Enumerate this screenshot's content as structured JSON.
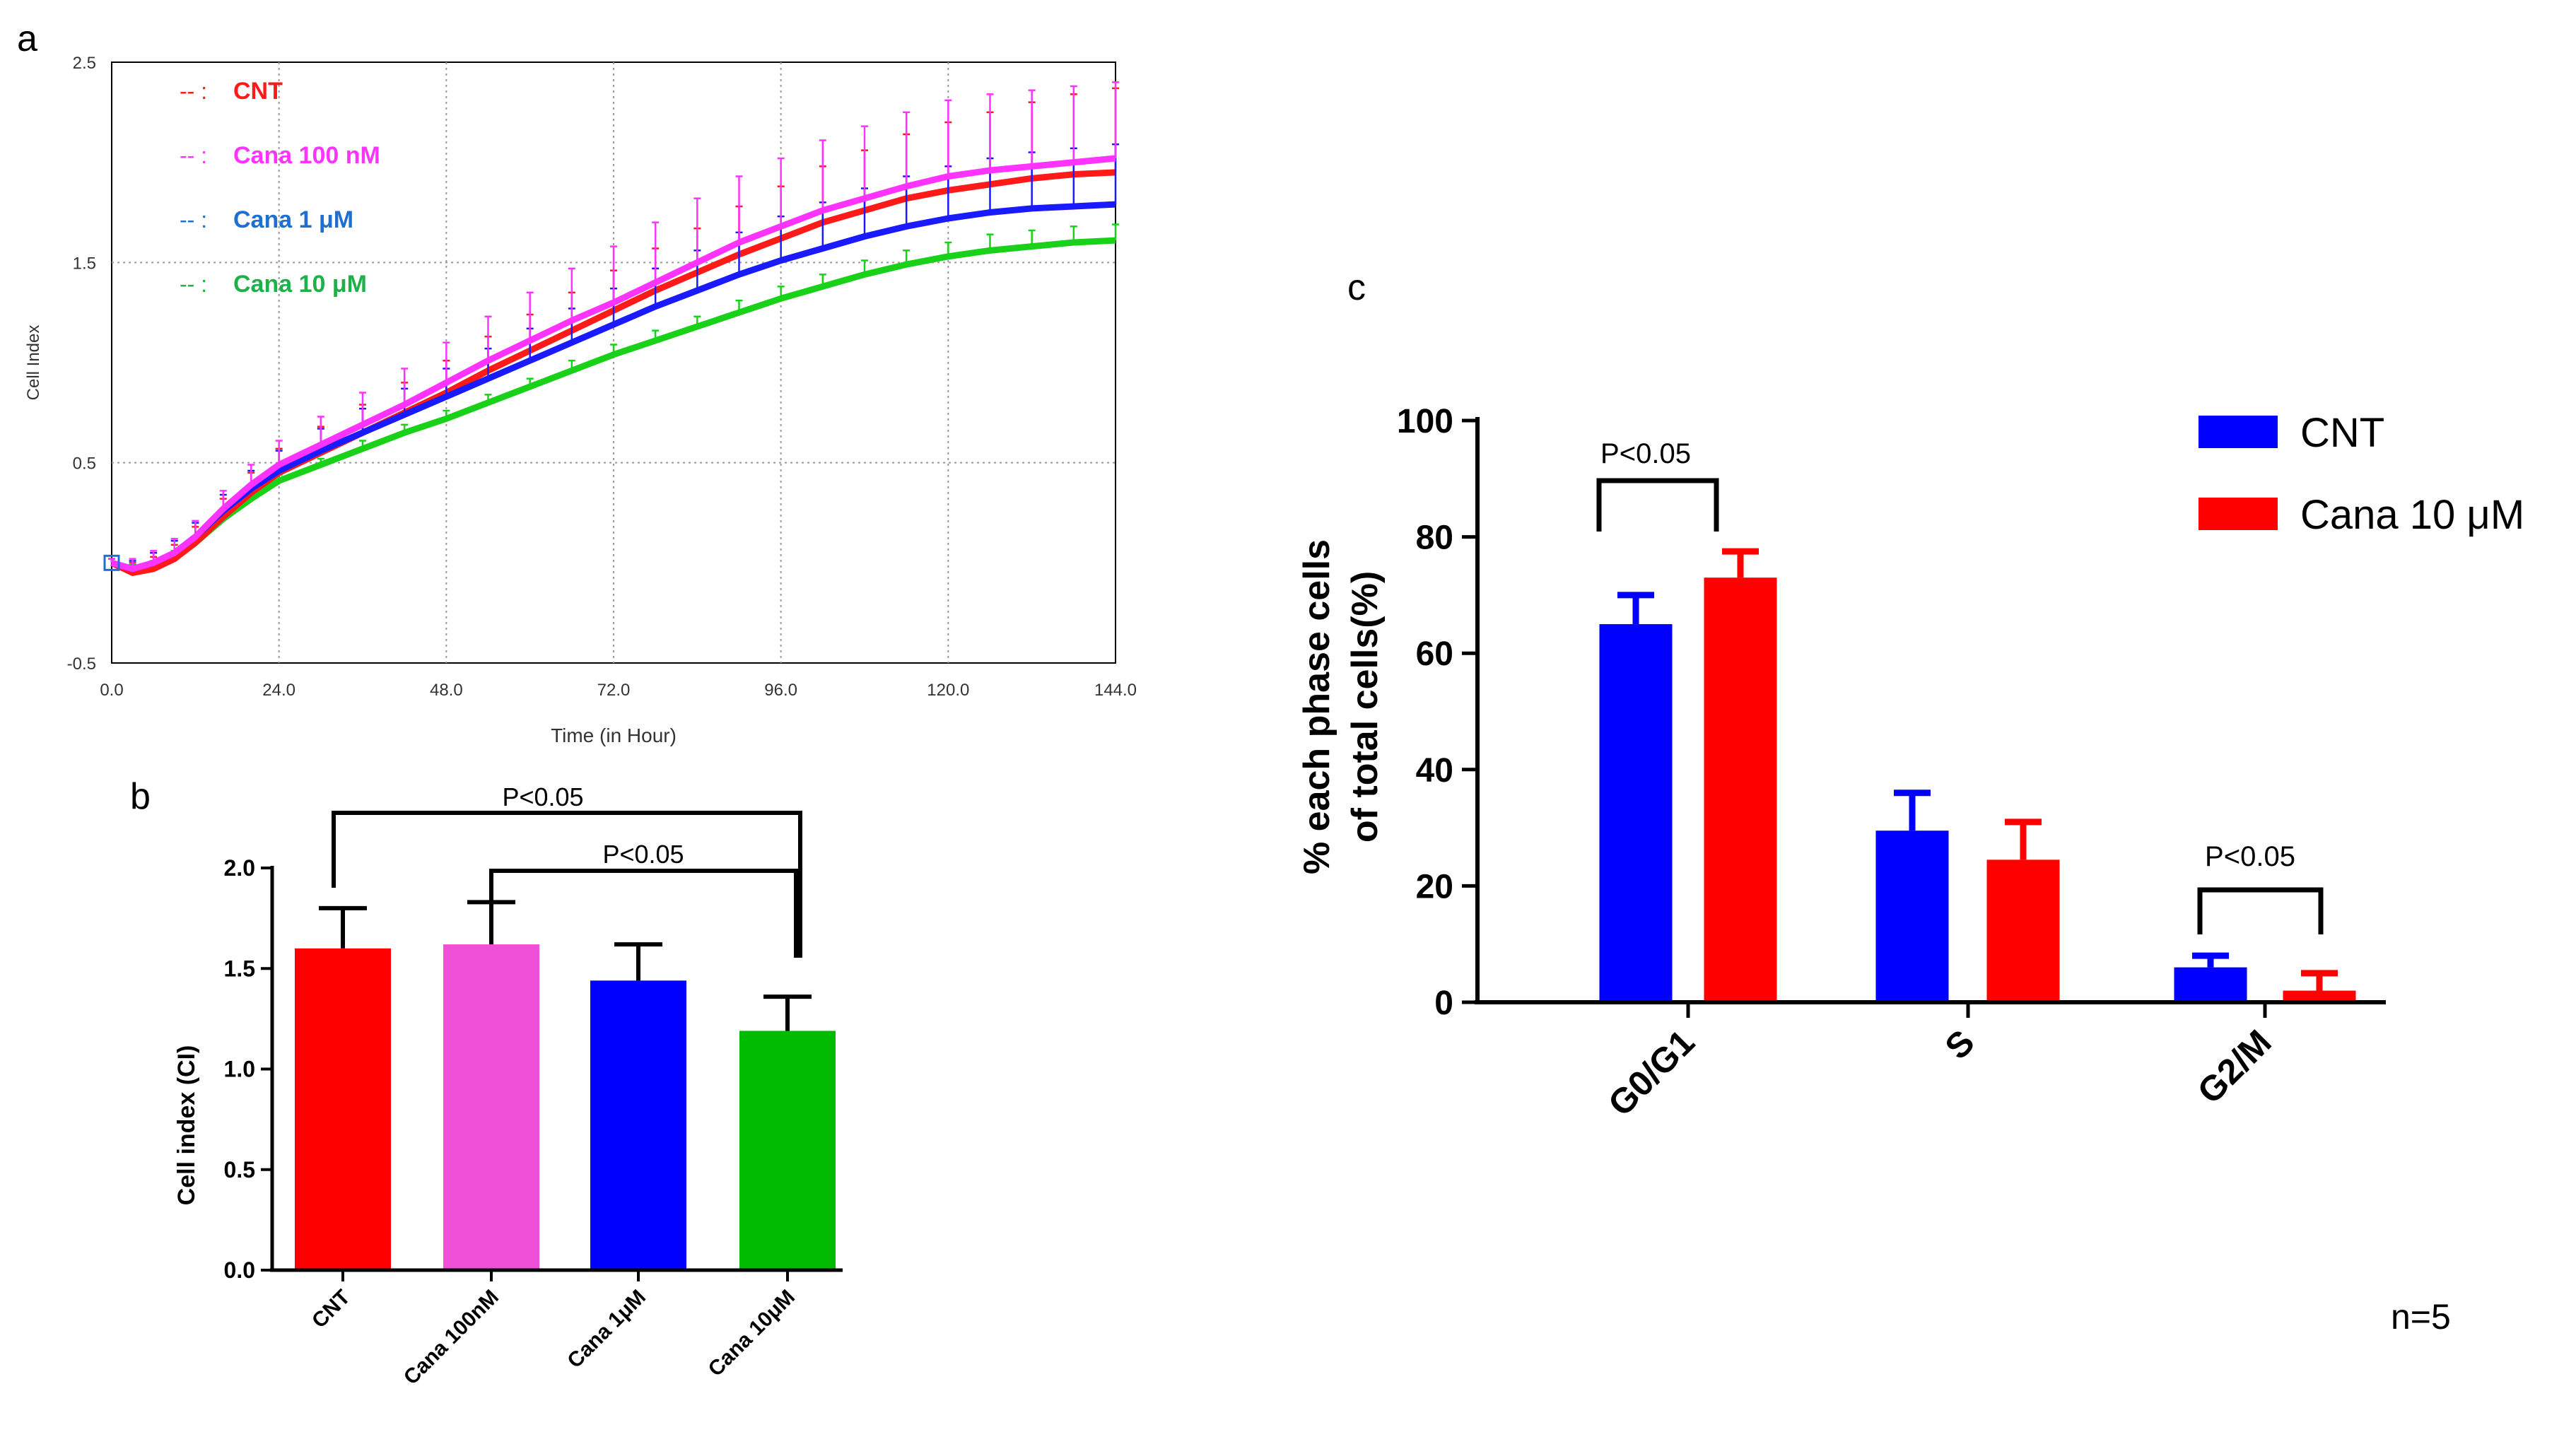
{
  "panels": {
    "a_label": "a",
    "b_label": "b",
    "c_label": "c",
    "footnote": "n=5"
  },
  "colors": {
    "CNT": "#ff1a1a",
    "Cana100": "#ff33ff",
    "Cana1": "#1a1aff",
    "Cana10": "#19d119",
    "Cana1_legend": "#1f6fd1",
    "Cana10_legend": "#1fb04a",
    "bar_CNT": "#ff0000",
    "bar_Cana100": "#f04fd8",
    "bar_Cana1": "#0000ff",
    "bar_Cana10": "#00bb00",
    "c_blue": "#0000ff",
    "c_red": "#ff0000"
  },
  "chart_data": [
    {
      "id": "a",
      "type": "line",
      "title": "",
      "xlabel": "Time (in Hour)",
      "ylabel": "Cell Index",
      "xlim": [
        0,
        144
      ],
      "ylim": [
        -0.5,
        2.5
      ],
      "xticks": [
        "0.0",
        "24.0",
        "48.0",
        "72.0",
        "96.0",
        "120.0",
        "144.0"
      ],
      "yticks": [
        "-0.5",
        "0.5",
        "1.5",
        "2.5"
      ],
      "grid": true,
      "legend": [
        {
          "prefix": "-- :",
          "label": "CNT"
        },
        {
          "prefix": "-- :",
          "label": "Cana 100 nM"
        },
        {
          "prefix": "-- :",
          "label": "Cana 1 μM"
        },
        {
          "prefix": "-- :",
          "label": "Cana 10 μM"
        }
      ],
      "x": [
        0,
        3,
        6,
        9,
        12,
        16,
        20,
        24,
        30,
        36,
        42,
        48,
        54,
        60,
        66,
        72,
        78,
        84,
        90,
        96,
        102,
        108,
        114,
        120,
        126,
        132,
        138,
        144
      ],
      "series": [
        {
          "name": "CNT",
          "values": [
            0.0,
            -0.05,
            -0.03,
            0.02,
            0.1,
            0.23,
            0.35,
            0.45,
            0.55,
            0.65,
            0.75,
            0.85,
            0.96,
            1.06,
            1.16,
            1.26,
            1.36,
            1.45,
            1.54,
            1.62,
            1.7,
            1.76,
            1.82,
            1.86,
            1.89,
            1.92,
            1.94,
            1.95
          ],
          "err": [
            0.02,
            0.05,
            0.06,
            0.07,
            0.08,
            0.09,
            0.1,
            0.12,
            0.13,
            0.14,
            0.15,
            0.16,
            0.17,
            0.18,
            0.19,
            0.2,
            0.21,
            0.22,
            0.24,
            0.26,
            0.28,
            0.3,
            0.32,
            0.34,
            0.36,
            0.38,
            0.4,
            0.42
          ]
        },
        {
          "name": "Cana 100 nM",
          "values": [
            0.0,
            -0.03,
            0.0,
            0.05,
            0.13,
            0.27,
            0.39,
            0.49,
            0.59,
            0.69,
            0.79,
            0.9,
            1.01,
            1.11,
            1.21,
            1.3,
            1.4,
            1.5,
            1.6,
            1.68,
            1.76,
            1.82,
            1.88,
            1.93,
            1.96,
            1.98,
            2.0,
            2.02
          ],
          "err": [
            0.02,
            0.05,
            0.06,
            0.07,
            0.08,
            0.09,
            0.1,
            0.12,
            0.14,
            0.16,
            0.18,
            0.2,
            0.22,
            0.24,
            0.26,
            0.28,
            0.3,
            0.32,
            0.33,
            0.34,
            0.35,
            0.36,
            0.37,
            0.38,
            0.38,
            0.38,
            0.38,
            0.38
          ]
        },
        {
          "name": "Cana 1 μM",
          "values": [
            0.0,
            -0.03,
            0.0,
            0.05,
            0.13,
            0.26,
            0.37,
            0.46,
            0.56,
            0.65,
            0.74,
            0.83,
            0.92,
            1.01,
            1.1,
            1.19,
            1.28,
            1.36,
            1.44,
            1.51,
            1.57,
            1.63,
            1.68,
            1.72,
            1.75,
            1.77,
            1.78,
            1.79
          ],
          "err": [
            0.02,
            0.04,
            0.05,
            0.06,
            0.07,
            0.08,
            0.09,
            0.1,
            0.11,
            0.12,
            0.13,
            0.14,
            0.15,
            0.16,
            0.17,
            0.18,
            0.19,
            0.2,
            0.21,
            0.22,
            0.23,
            0.24,
            0.25,
            0.26,
            0.27,
            0.28,
            0.29,
            0.3
          ]
        },
        {
          "name": "Cana 10 μM",
          "values": [
            0.0,
            -0.04,
            -0.02,
            0.03,
            0.1,
            0.22,
            0.32,
            0.41,
            0.49,
            0.57,
            0.65,
            0.72,
            0.8,
            0.88,
            0.96,
            1.04,
            1.11,
            1.18,
            1.25,
            1.32,
            1.38,
            1.44,
            1.49,
            1.53,
            1.56,
            1.58,
            1.6,
            1.61
          ],
          "err": [
            0.02,
            0.03,
            0.03,
            0.03,
            0.03,
            0.03,
            0.03,
            0.03,
            0.03,
            0.04,
            0.04,
            0.04,
            0.04,
            0.04,
            0.05,
            0.05,
            0.05,
            0.05,
            0.06,
            0.06,
            0.06,
            0.07,
            0.07,
            0.07,
            0.08,
            0.08,
            0.08,
            0.08
          ]
        }
      ]
    },
    {
      "id": "b",
      "type": "bar",
      "title": "",
      "xlabel": "",
      "ylabel": "Cell index (CI)",
      "ylim": [
        0,
        2.0
      ],
      "yticks": [
        "0.0",
        "0.5",
        "1.0",
        "1.5",
        "2.0"
      ],
      "categories": [
        "CNT",
        "Cana 100nM",
        "Cana 1μM",
        "Cana 10μM"
      ],
      "values": [
        1.6,
        1.62,
        1.44,
        1.19
      ],
      "errors": [
        0.2,
        0.21,
        0.18,
        0.17
      ],
      "annotations": [
        {
          "text": "P<0.05",
          "from": "CNT",
          "to": "Cana 10μM"
        },
        {
          "text": "P<0.05",
          "from": "Cana 100nM",
          "to": "Cana 10μM"
        }
      ]
    },
    {
      "id": "c",
      "type": "bar",
      "title": "",
      "xlabel": "",
      "ylabel_line1": "% each phase cells",
      "ylabel_line2": "of total cells(%)",
      "ylim": [
        0,
        100
      ],
      "yticks": [
        "0",
        "20",
        "40",
        "60",
        "80",
        "100"
      ],
      "categories": [
        "G0/G1",
        "S",
        "G2/M"
      ],
      "legend": [
        "CNT",
        "Cana 10 μM"
      ],
      "legend_position": "top-right",
      "series": [
        {
          "name": "CNT",
          "values": [
            65,
            29.5,
            6
          ],
          "errors": [
            5,
            6.5,
            2
          ]
        },
        {
          "name": "Cana 10 μM",
          "values": [
            73,
            24.5,
            2
          ],
          "errors": [
            4.5,
            6.5,
            3
          ]
        }
      ],
      "annotations": [
        {
          "text": "P<0.05",
          "category": "G0/G1"
        },
        {
          "text": "P<0.05",
          "category": "G2/M"
        }
      ]
    }
  ]
}
